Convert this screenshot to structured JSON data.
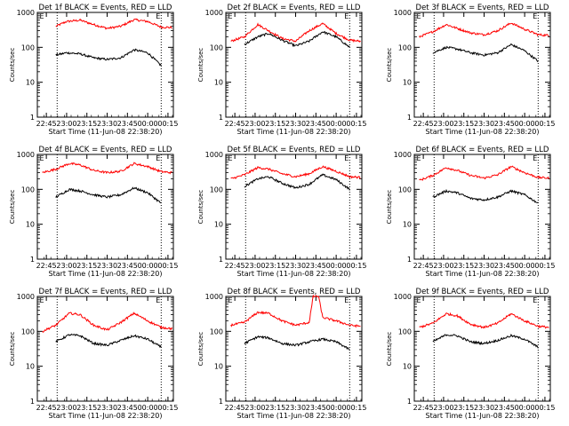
{
  "chart_data": [
    {
      "type": "line",
      "title": "Det 1f BLACK = Events, RED = LLD",
      "xlabel": "Start Time (11-Jun-08 22:38:20)",
      "ylabel": "Counts/sec",
      "yscale": "log",
      "ylim": [
        1,
        1000
      ],
      "xlim": [
        "22:38:20",
        "00:19:00"
      ],
      "x_ticks": [
        "22:45",
        "23:00",
        "23:15",
        "23:30",
        "23:45",
        "00:00",
        "00:15"
      ],
      "y_ticks": [
        "1",
        "10",
        "100",
        "1000"
      ],
      "vlines": [
        "22:53",
        "00:10"
      ],
      "flag_label": "E",
      "series": [
        {
          "name": "RED = LLD",
          "color": "#ff0000",
          "x": [
            "22:52",
            "23:00",
            "23:10",
            "23:20",
            "23:30",
            "23:40",
            "23:50",
            "00:00",
            "00:10",
            "00:18"
          ],
          "values": [
            400,
            550,
            600,
            450,
            350,
            400,
            620,
            550,
            380,
            370
          ]
        },
        {
          "name": "BLACK = Events",
          "color": "#000000",
          "x": [
            "22:52",
            "23:00",
            "23:10",
            "23:20",
            "23:30",
            "23:40",
            "23:50",
            "00:00",
            "00:10"
          ],
          "values": [
            60,
            70,
            65,
            50,
            45,
            50,
            85,
            70,
            30
          ]
        }
      ]
    },
    {
      "type": "line",
      "title": "Det 2f BLACK = Events, RED = LLD",
      "xlabel": "Start Time (11-Jun-08 22:38:20)",
      "ylabel": "Counts/sec",
      "yscale": "log",
      "ylim": [
        1,
        1000
      ],
      "xlim": [
        "22:38:20",
        "00:19:00"
      ],
      "x_ticks": [
        "22:45",
        "23:00",
        "23:15",
        "23:30",
        "23:45",
        "00:00",
        "00:15"
      ],
      "y_ticks": [
        "1",
        "10",
        "100",
        "1000"
      ],
      "vlines": [
        "22:53",
        "00:10"
      ],
      "flag_label": "E",
      "series": [
        {
          "name": "RED = LLD",
          "color": "#ff0000",
          "x": [
            "22:42",
            "22:52",
            "23:02",
            "23:10",
            "23:20",
            "23:30",
            "23:40",
            "23:50",
            "00:00",
            "00:10",
            "00:18"
          ],
          "values": [
            150,
            200,
            450,
            300,
            180,
            150,
            300,
            480,
            250,
            160,
            150
          ]
        },
        {
          "name": "BLACK = Events",
          "color": "#000000",
          "x": [
            "22:52",
            "23:02",
            "23:10",
            "23:20",
            "23:30",
            "23:40",
            "23:50",
            "00:00",
            "00:10"
          ],
          "values": [
            120,
            200,
            250,
            160,
            110,
            150,
            280,
            200,
            100
          ]
        }
      ]
    },
    {
      "type": "line",
      "title": "Det 3f BLACK = Events, RED = LLD",
      "xlabel": "Start Time (11-Jun-08 22:38:20)",
      "ylabel": "Counts/sec",
      "yscale": "log",
      "ylim": [
        1,
        1000
      ],
      "xlim": [
        "22:38:20",
        "00:19:00"
      ],
      "x_ticks": [
        "22:45",
        "23:00",
        "23:15",
        "23:30",
        "23:45",
        "00:00",
        "00:15"
      ],
      "y_ticks": [
        "1",
        "10",
        "100",
        "1000"
      ],
      "vlines": [
        "22:53",
        "00:10"
      ],
      "flag_label": "E",
      "series": [
        {
          "name": "RED = LLD",
          "color": "#ff0000",
          "x": [
            "22:42",
            "22:52",
            "23:02",
            "23:10",
            "23:20",
            "23:30",
            "23:40",
            "23:50",
            "00:00",
            "00:10",
            "00:18"
          ],
          "values": [
            200,
            280,
            450,
            350,
            260,
            230,
            300,
            500,
            330,
            230,
            220
          ]
        },
        {
          "name": "BLACK = Events",
          "color": "#000000",
          "x": [
            "22:52",
            "23:02",
            "23:10",
            "23:20",
            "23:30",
            "23:40",
            "23:50",
            "00:00",
            "00:10"
          ],
          "values": [
            70,
            100,
            90,
            70,
            60,
            70,
            120,
            80,
            40
          ]
        }
      ]
    },
    {
      "type": "line",
      "title": "Det 4f BLACK = Events, RED = LLD",
      "xlabel": "Start Time (11-Jun-08 22:38:20)",
      "ylabel": "Counts/sec",
      "yscale": "log",
      "ylim": [
        1,
        1000
      ],
      "xlim": [
        "22:38:20",
        "00:19:00"
      ],
      "x_ticks": [
        "22:45",
        "23:00",
        "23:15",
        "23:30",
        "23:45",
        "00:00",
        "00:15"
      ],
      "y_ticks": [
        "1",
        "10",
        "100",
        "1000"
      ],
      "vlines": [
        "22:53",
        "00:10"
      ],
      "flag_label": "E",
      "series": [
        {
          "name": "RED = LLD",
          "color": "#ff0000",
          "x": [
            "22:42",
            "22:52",
            "23:02",
            "23:10",
            "23:20",
            "23:30",
            "23:40",
            "23:50",
            "00:00",
            "00:10",
            "00:18"
          ],
          "values": [
            300,
            380,
            550,
            500,
            350,
            300,
            330,
            550,
            450,
            320,
            300
          ]
        },
        {
          "name": "BLACK = Events",
          "color": "#000000",
          "x": [
            "22:52",
            "23:02",
            "23:10",
            "23:20",
            "23:30",
            "23:40",
            "23:50",
            "00:00",
            "00:10"
          ],
          "values": [
            60,
            100,
            90,
            70,
            60,
            70,
            110,
            80,
            40
          ]
        }
      ]
    },
    {
      "type": "line",
      "title": "Det 5f BLACK = Events, RED = LLD",
      "xlabel": "Start Time (11-Jun-08 22:38:20)",
      "ylabel": "Counts/sec",
      "yscale": "log",
      "ylim": [
        1,
        1000
      ],
      "xlim": [
        "22:38:20",
        "00:19:00"
      ],
      "x_ticks": [
        "22:45",
        "23:00",
        "23:15",
        "23:30",
        "23:45",
        "00:00",
        "00:15"
      ],
      "y_ticks": [
        "1",
        "10",
        "100",
        "1000"
      ],
      "vlines": [
        "22:53",
        "00:10"
      ],
      "flag_label": "E",
      "series": [
        {
          "name": "RED = LLD",
          "color": "#ff0000",
          "x": [
            "22:42",
            "22:52",
            "23:02",
            "23:10",
            "23:20",
            "23:30",
            "23:40",
            "23:50",
            "00:00",
            "00:10",
            "00:18"
          ],
          "values": [
            200,
            260,
            420,
            380,
            280,
            230,
            280,
            450,
            330,
            230,
            220
          ]
        },
        {
          "name": "BLACK = Events",
          "color": "#000000",
          "x": [
            "22:52",
            "23:02",
            "23:10",
            "23:20",
            "23:30",
            "23:40",
            "23:50",
            "00:00",
            "00:10"
          ],
          "values": [
            120,
            200,
            230,
            150,
            110,
            140,
            260,
            190,
            100
          ]
        }
      ]
    },
    {
      "type": "line",
      "title": "Det 6f BLACK = Events, RED = LLD",
      "xlabel": "Start Time (11-Jun-08 22:38:20)",
      "ylabel": "Counts/sec",
      "yscale": "log",
      "ylim": [
        1,
        1000
      ],
      "xlim": [
        "22:38:20",
        "00:19:00"
      ],
      "x_ticks": [
        "22:45",
        "23:00",
        "23:15",
        "23:30",
        "23:45",
        "00:00",
        "00:15"
      ],
      "y_ticks": [
        "1",
        "10",
        "100",
        "1000"
      ],
      "vlines": [
        "22:53",
        "00:10"
      ],
      "flag_label": "E",
      "series": [
        {
          "name": "RED = LLD",
          "color": "#ff0000",
          "x": [
            "22:42",
            "22:52",
            "23:02",
            "23:10",
            "23:20",
            "23:30",
            "23:40",
            "23:50",
            "00:00",
            "00:10",
            "00:18"
          ],
          "values": [
            180,
            250,
            420,
            350,
            250,
            210,
            260,
            450,
            300,
            220,
            210
          ]
        },
        {
          "name": "BLACK = Events",
          "color": "#000000",
          "x": [
            "22:52",
            "23:02",
            "23:10",
            "23:20",
            "23:30",
            "23:40",
            "23:50",
            "00:00",
            "00:10"
          ],
          "values": [
            60,
            90,
            80,
            55,
            50,
            60,
            90,
            70,
            40
          ]
        }
      ]
    },
    {
      "type": "line",
      "title": "Det 7f BLACK = Events, RED = LLD",
      "xlabel": "Start Time (11-Jun-08 22:38:20)",
      "ylabel": "Counts/sec",
      "yscale": "log",
      "ylim": [
        1,
        1000
      ],
      "xlim": [
        "22:38:20",
        "00:19:00"
      ],
      "x_ticks": [
        "22:45",
        "23:00",
        "23:15",
        "23:30",
        "23:45",
        "00:00",
        "00:15"
      ],
      "y_ticks": [
        "1",
        "10",
        "100",
        "1000"
      ],
      "vlines": [
        "22:53",
        "00:10"
      ],
      "flag_label": "E",
      "series": [
        {
          "name": "RED = LLD",
          "color": "#ff0000",
          "x": [
            "22:42",
            "22:52",
            "23:02",
            "23:10",
            "23:20",
            "23:30",
            "23:40",
            "23:50",
            "00:00",
            "00:10",
            "00:18"
          ],
          "values": [
            100,
            150,
            330,
            300,
            150,
            110,
            180,
            330,
            200,
            130,
            120
          ]
        },
        {
          "name": "BLACK = Events",
          "color": "#000000",
          "x": [
            "22:52",
            "23:02",
            "23:10",
            "23:20",
            "23:30",
            "23:40",
            "23:50",
            "00:00",
            "00:10"
          ],
          "values": [
            50,
            80,
            75,
            45,
            40,
            55,
            75,
            60,
            35
          ]
        }
      ]
    },
    {
      "type": "line",
      "title": "Det 8f BLACK = Events, RED = LLD",
      "xlabel": "Start Time (11-Jun-08 22:38:20)",
      "ylabel": "Counts/sec",
      "yscale": "log",
      "ylim": [
        1,
        1000
      ],
      "xlim": [
        "22:38:20",
        "00:19:00"
      ],
      "x_ticks": [
        "22:45",
        "23:00",
        "23:15",
        "23:30",
        "23:45",
        "00:00",
        "00:15"
      ],
      "y_ticks": [
        "1",
        "10",
        "100",
        "1000"
      ],
      "vlines": [
        "22:53",
        "00:10"
      ],
      "flag_label": "E",
      "series": [
        {
          "name": "RED = LLD",
          "color": "#ff0000",
          "x": [
            "22:42",
            "22:52",
            "23:02",
            "23:10",
            "23:20",
            "23:30",
            "23:40",
            "23:43",
            "23:44",
            "23:47",
            "23:50",
            "00:00",
            "00:10",
            "00:18"
          ],
          "values": [
            150,
            180,
            350,
            330,
            200,
            150,
            180,
            1000,
            1000,
            1000,
            250,
            200,
            150,
            140
          ]
        },
        {
          "name": "BLACK = Events",
          "color": "#000000",
          "x": [
            "22:52",
            "23:02",
            "23:10",
            "23:20",
            "23:30",
            "23:40",
            "23:50",
            "00:00",
            "00:10"
          ],
          "values": [
            45,
            70,
            65,
            45,
            40,
            50,
            60,
            50,
            30
          ]
        }
      ]
    },
    {
      "type": "line",
      "title": "Det 9f BLACK = Events, RED = LLD",
      "xlabel": "Start Time (11-Jun-08 22:38:20)",
      "ylabel": "Counts/sec",
      "yscale": "log",
      "ylim": [
        1,
        1000
      ],
      "xlim": [
        "22:38:20",
        "00:19:00"
      ],
      "x_ticks": [
        "22:45",
        "23:00",
        "23:15",
        "23:30",
        "23:45",
        "00:00",
        "00:15"
      ],
      "y_ticks": [
        "1",
        "10",
        "100",
        "1000"
      ],
      "vlines": [
        "22:53",
        "00:10"
      ],
      "flag_label": "E",
      "series": [
        {
          "name": "RED = LLD",
          "color": "#ff0000",
          "x": [
            "22:42",
            "22:52",
            "23:02",
            "23:10",
            "23:20",
            "23:30",
            "23:40",
            "23:50",
            "00:00",
            "00:10",
            "00:18"
          ],
          "values": [
            130,
            170,
            320,
            280,
            160,
            130,
            170,
            320,
            200,
            140,
            130
          ]
        },
        {
          "name": "BLACK = Events",
          "color": "#000000",
          "x": [
            "22:52",
            "23:02",
            "23:10",
            "23:20",
            "23:30",
            "23:40",
            "23:50",
            "00:00",
            "00:10"
          ],
          "values": [
            50,
            80,
            75,
            50,
            45,
            55,
            75,
            60,
            35
          ]
        }
      ]
    }
  ]
}
